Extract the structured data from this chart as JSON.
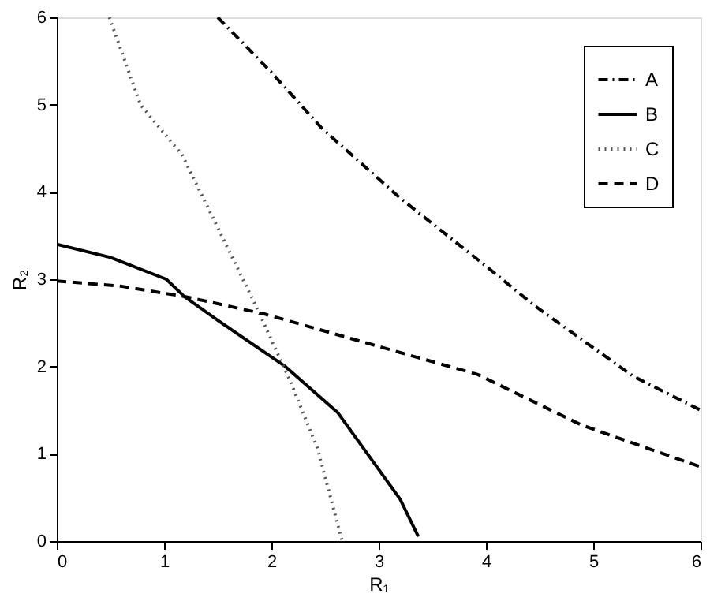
{
  "chart_data": {
    "type": "line",
    "xlabel": "R₁",
    "ylabel": "R₂",
    "xlim": [
      0,
      6
    ],
    "ylim": [
      0,
      6
    ],
    "xticks": [
      0,
      1,
      2,
      3,
      4,
      5,
      6
    ],
    "yticks": [
      0,
      1,
      2,
      3,
      4,
      5,
      6
    ],
    "grid": false,
    "legend": "top right",
    "marker": "none",
    "series": [
      {
        "name": "A",
        "color": "#000000",
        "line_style": "dashdot",
        "x": [
          1.5,
          2,
          2.47,
          3.2,
          4,
          4.46,
          5.37,
          6
        ],
        "values": [
          6,
          5.37,
          4.73,
          3.93,
          3.15,
          2.69,
          1.89,
          1.5
        ]
      },
      {
        "name": "B",
        "color": "#000000",
        "line_style": "solid",
        "x": [
          0,
          0.5,
          1.02,
          1.19,
          1.5,
          2.13,
          2.62,
          3.2,
          3.37
        ],
        "values": [
          3.4,
          3.25,
          3.0,
          2.8,
          2.53,
          2.0,
          1.47,
          0.48,
          0.05
        ]
      },
      {
        "name": "C",
        "color": "#555555",
        "line_style": "dotted",
        "x": [
          0.49,
          0.78,
          1.17,
          1.85,
          2.18,
          2.43,
          2.66
        ],
        "values": [
          6,
          5.0,
          4.42,
          2.71,
          1.82,
          1.06,
          0
        ]
      },
      {
        "name": "D",
        "color": "#000000",
        "line_style": "dashed",
        "x": [
          0,
          0.6,
          1.2,
          1.94,
          2.6,
          3.2,
          3.92,
          4.89,
          6
        ],
        "values": [
          2.98,
          2.92,
          2.8,
          2.6,
          2.37,
          2.16,
          1.91,
          1.33,
          0.85
        ]
      }
    ]
  }
}
